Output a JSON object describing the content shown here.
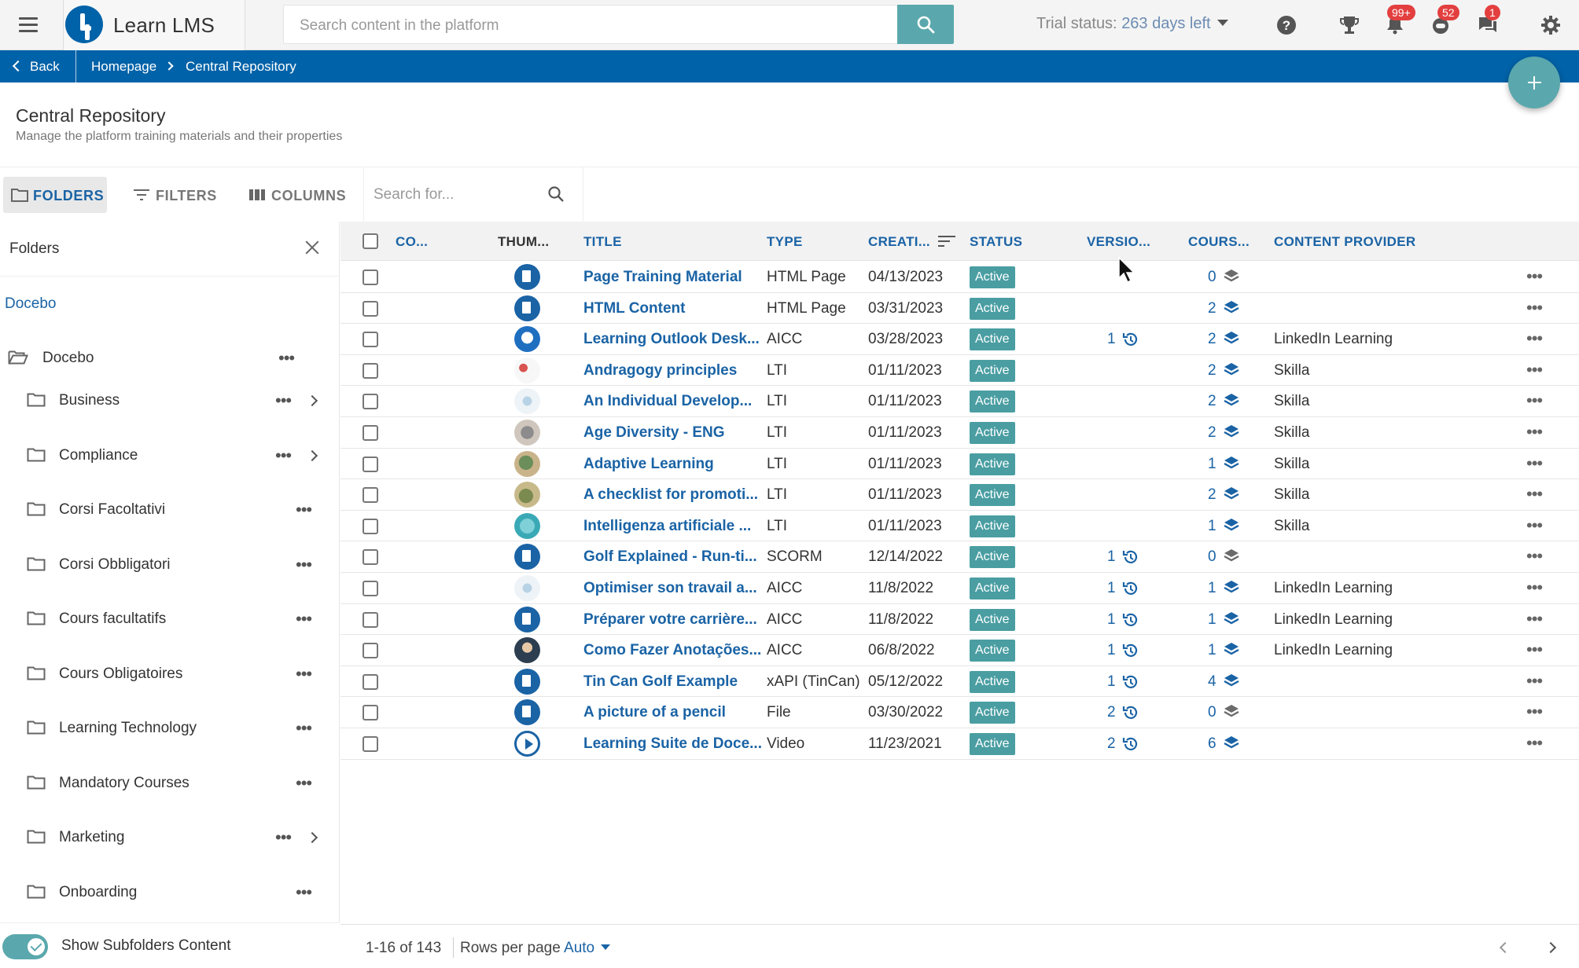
{
  "topbar": {
    "brand_name": "Learn LMS",
    "search_placeholder": "Search content in the platform",
    "trial_label": "Trial status:",
    "trial_days": "263 days left",
    "badges": {
      "notifications": "99+",
      "messages": "52",
      "chat": "1"
    }
  },
  "breadcrumb": {
    "back": "Back",
    "home": "Homepage",
    "current": "Central Repository"
  },
  "page": {
    "title": "Central Repository",
    "subtitle": "Manage the platform training materials and their properties"
  },
  "toolbar": {
    "folders": "FOLDERS",
    "filters": "FILTERS",
    "columns": "COLUMNS",
    "search_placeholder": "Search for..."
  },
  "folders_panel": {
    "title": "Folders",
    "root_link": "Docebo",
    "root_folder": "Docebo",
    "items": [
      {
        "name": "Business",
        "expandable": true
      },
      {
        "name": "Compliance",
        "expandable": true
      },
      {
        "name": "Corsi Facoltativi",
        "expandable": false
      },
      {
        "name": "Corsi Obbligatori",
        "expandable": false
      },
      {
        "name": "Cours facultatifs",
        "expandable": false
      },
      {
        "name": "Cours Obligatoires",
        "expandable": false
      },
      {
        "name": "Learning Technology",
        "expandable": false
      },
      {
        "name": "Mandatory Courses",
        "expandable": false
      },
      {
        "name": "Marketing",
        "expandable": true
      },
      {
        "name": "Onboarding",
        "expandable": false
      }
    ],
    "show_subfolders_label": "Show Subfolders Content",
    "show_subfolders_on": true
  },
  "table": {
    "headers": {
      "code": "CO...",
      "thumbnail": "THUM...",
      "title": "TITLE",
      "type": "TYPE",
      "created": "CREATI...",
      "status": "STATUS",
      "version": "VERSIO...",
      "courses": "COURS...",
      "provider": "CONTENT PROVIDER"
    },
    "rows": [
      {
        "thumb": "icon",
        "title": "Page Training Material",
        "type": "HTML Page",
        "created": "04/13/2023",
        "status": "Active",
        "version": "",
        "courses": "0",
        "provider": ""
      },
      {
        "thumb": "icon",
        "title": "HTML Content",
        "type": "HTML Page",
        "created": "03/31/2023",
        "status": "Active",
        "version": "",
        "courses": "2",
        "provider": ""
      },
      {
        "thumb": "img-blue",
        "title": "Learning Outlook Desk...",
        "type": "AICC",
        "created": "03/28/2023",
        "status": "Active",
        "version": "1",
        "courses": "2",
        "provider": "LinkedIn Learning"
      },
      {
        "thumb": "img-people",
        "title": "Andragogy principles",
        "type": "LTI",
        "created": "01/11/2023",
        "status": "Active",
        "version": "",
        "courses": "2",
        "provider": "Skilla"
      },
      {
        "thumb": "img-light",
        "title": "An Individual Develop...",
        "type": "LTI",
        "created": "01/11/2023",
        "status": "Active",
        "version": "",
        "courses": "2",
        "provider": "Skilla"
      },
      {
        "thumb": "img-grey",
        "title": "Age Diversity - ENG",
        "type": "LTI",
        "created": "01/11/2023",
        "status": "Active",
        "version": "",
        "courses": "2",
        "provider": "Skilla"
      },
      {
        "thumb": "img-green",
        "title": "Adaptive Learning",
        "type": "LTI",
        "created": "01/11/2023",
        "status": "Active",
        "version": "",
        "courses": "1",
        "provider": "Skilla"
      },
      {
        "thumb": "img-olive",
        "title": "A checklist for promoti...",
        "type": "LTI",
        "created": "01/11/2023",
        "status": "Active",
        "version": "",
        "courses": "2",
        "provider": "Skilla"
      },
      {
        "thumb": "img-teal",
        "title": "Intelligenza artificiale ...",
        "type": "LTI",
        "created": "01/11/2023",
        "status": "Active",
        "version": "",
        "courses": "1",
        "provider": "Skilla"
      },
      {
        "thumb": "icon",
        "title": "Golf Explained - Run-ti...",
        "type": "SCORM",
        "created": "12/14/2022",
        "status": "Active",
        "version": "1",
        "courses": "0",
        "provider": ""
      },
      {
        "thumb": "img-light",
        "title": "Optimiser son travail a...",
        "type": "AICC",
        "created": "11/8/2022",
        "status": "Active",
        "version": "1",
        "courses": "1",
        "provider": "LinkedIn Learning"
      },
      {
        "thumb": "icon",
        "title": "Préparer votre carrière...",
        "type": "AICC",
        "created": "11/8/2022",
        "status": "Active",
        "version": "1",
        "courses": "1",
        "provider": "LinkedIn Learning"
      },
      {
        "thumb": "img-dark",
        "title": "Como Fazer Anotações...",
        "type": "AICC",
        "created": "06/8/2022",
        "status": "Active",
        "version": "1",
        "courses": "1",
        "provider": "LinkedIn Learning"
      },
      {
        "thumb": "icon",
        "title": "Tin Can Golf Example",
        "type": "xAPI (TinCan)",
        "created": "05/12/2022",
        "status": "Active",
        "version": "1",
        "courses": "4",
        "provider": ""
      },
      {
        "thumb": "icon",
        "title": "A picture of a pencil",
        "type": "File",
        "created": "03/30/2022",
        "status": "Active",
        "version": "2",
        "courses": "0",
        "provider": ""
      },
      {
        "thumb": "video",
        "title": "Learning Suite de Doce...",
        "type": "Video",
        "created": "11/23/2021",
        "status": "Active",
        "version": "2",
        "courses": "6",
        "provider": ""
      }
    ]
  },
  "footer": {
    "range": "1-16 of 143",
    "rows_per_page_label": "Rows per page",
    "rows_per_page_value": "Auto"
  },
  "colors": {
    "primary": "#0062a8",
    "accent": "#5aa8ad",
    "status_active": "#4a9ea2",
    "link": "#1a63a5",
    "badge": "#e33f3f"
  }
}
